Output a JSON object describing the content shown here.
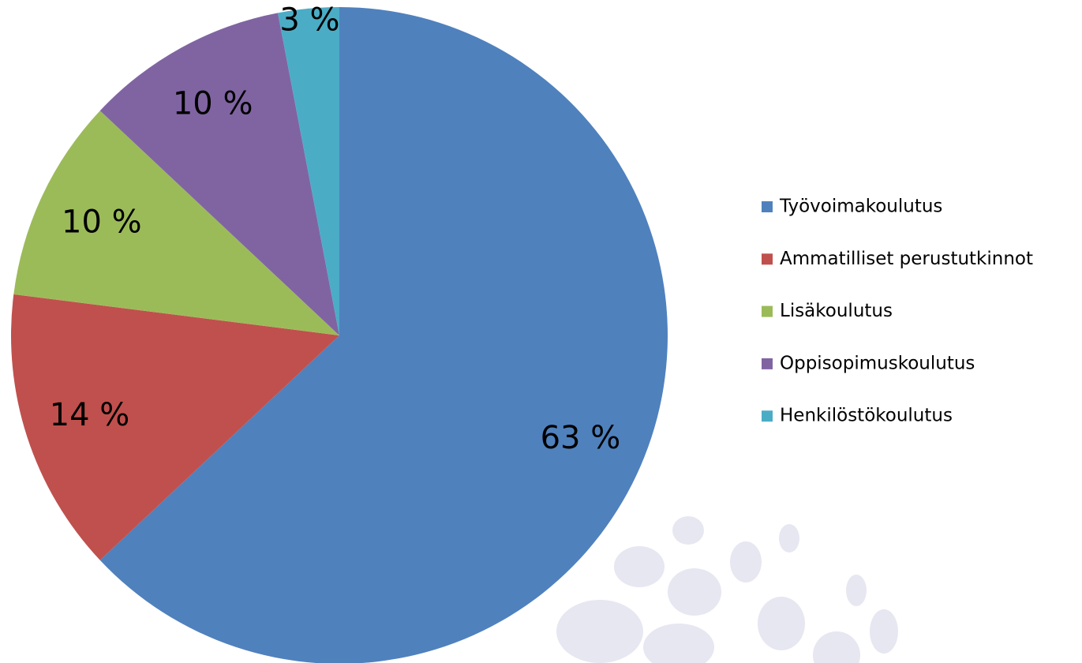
{
  "chart_data": {
    "type": "pie",
    "categories": [
      "Työvoimakoulutus",
      "Ammatilliset perustutkinnot",
      "Lisäkoulutus",
      "Oppisopimuskoulutus",
      "Henkilöstökoulutus"
    ],
    "values": [
      63,
      14,
      10,
      10,
      3
    ],
    "value_labels": [
      "63 %",
      "14 %",
      "10 %",
      "10 %",
      "3 %"
    ],
    "colors": [
      "#4f81bd",
      "#c0504d",
      "#9bbb59",
      "#8064a2",
      "#4bacc6"
    ],
    "legend": "right"
  }
}
